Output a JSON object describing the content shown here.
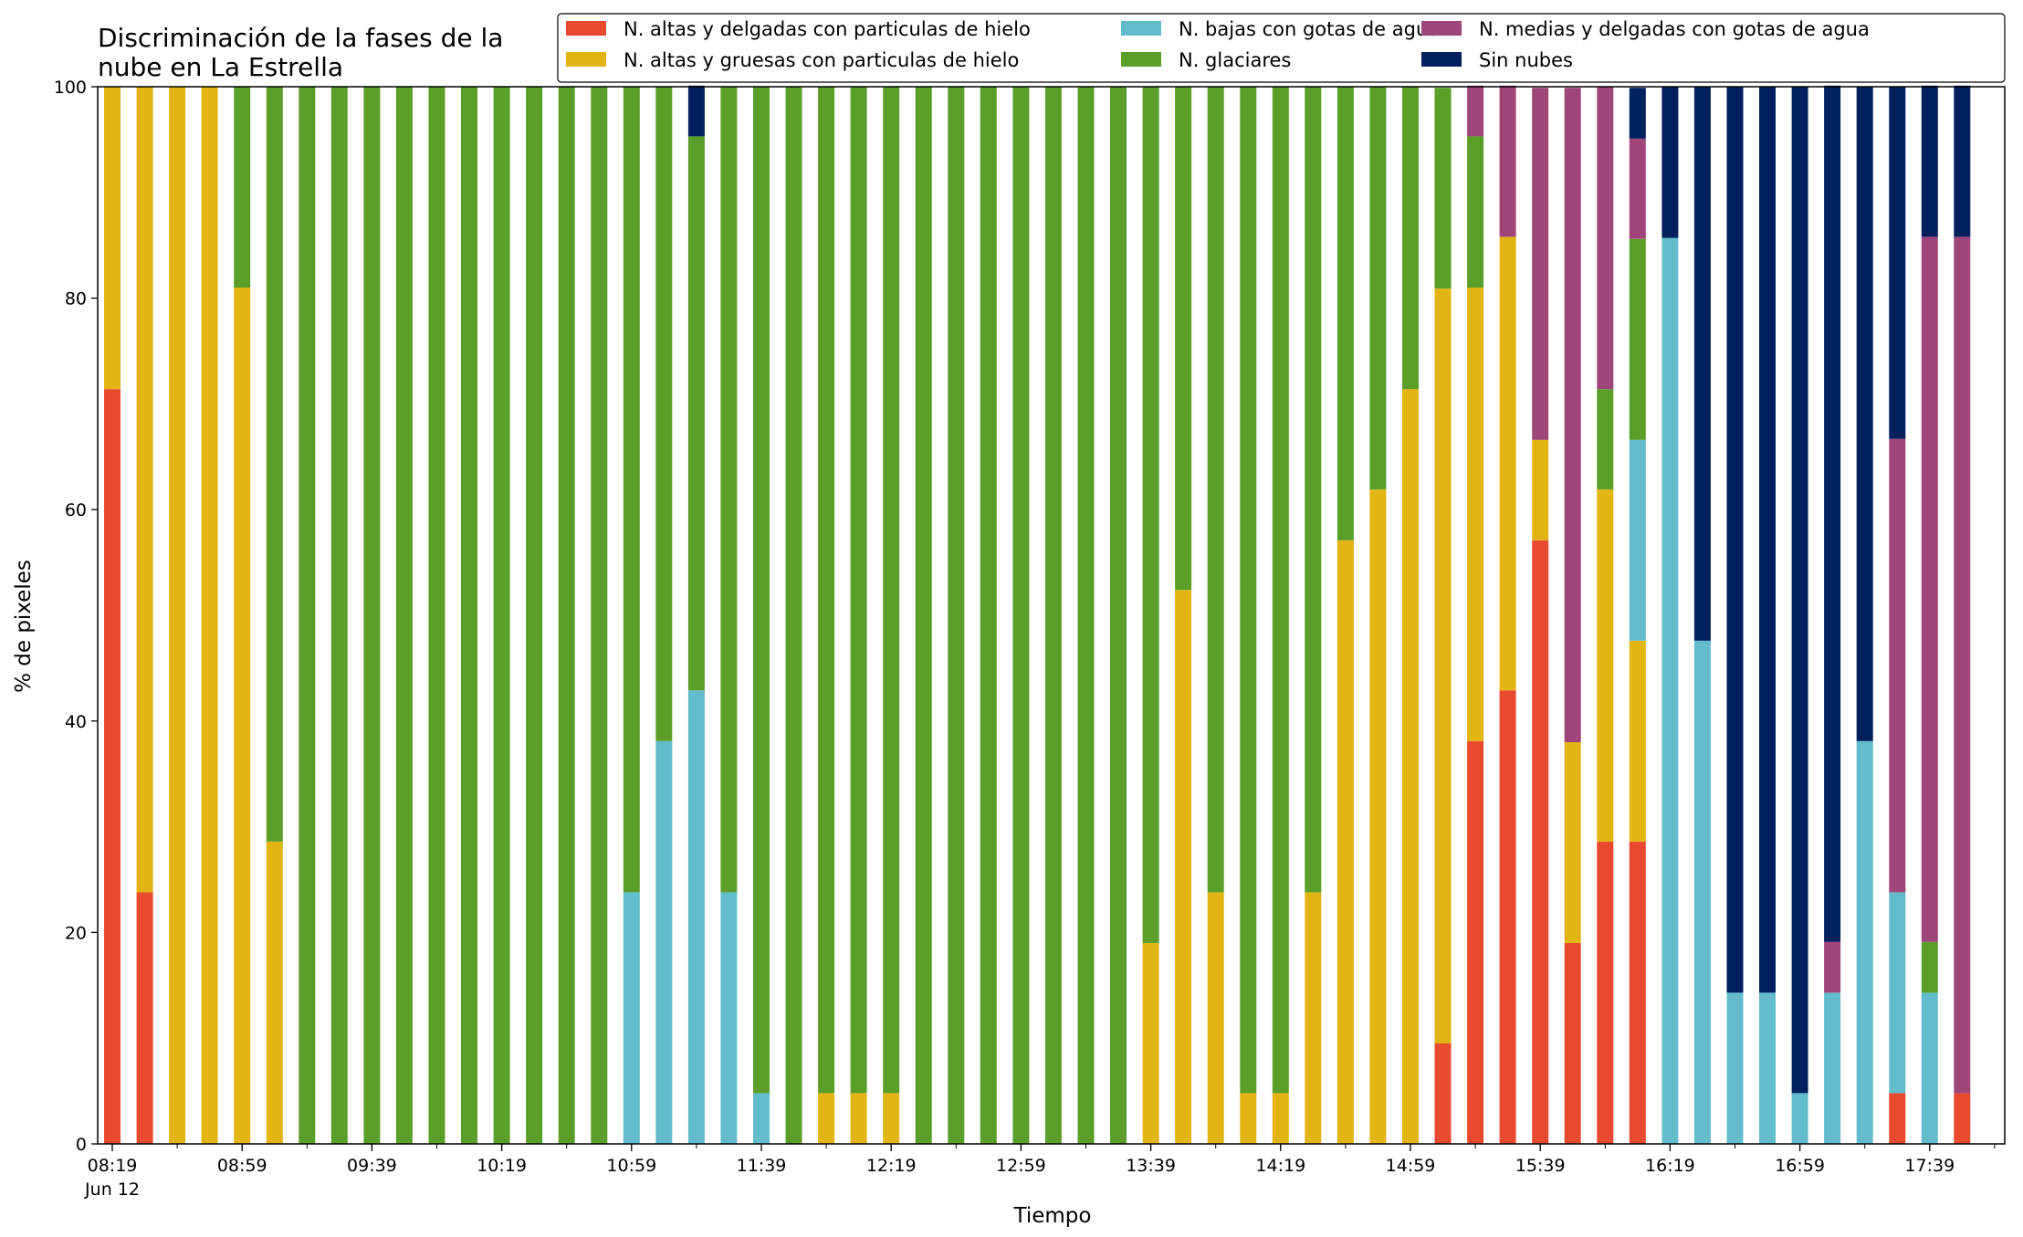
{
  "chart_data": {
    "type": "bar",
    "stacked": true,
    "title": "Discriminación de la fases de la nube en La Estrella",
    "title_lines": [
      "Discriminación de la fases de la",
      "nube en La Estrella"
    ],
    "xlabel": "Tiempo",
    "ylabel": "% de pixeles",
    "ylim": [
      0,
      100
    ],
    "yticks": [
      "0",
      "20",
      "40",
      "60",
      "80",
      "100"
    ],
    "xticks": [
      "08:19",
      "08:59",
      "09:39",
      "10:19",
      "10:59",
      "11:39",
      "12:19",
      "12:59",
      "13:39",
      "14:19",
      "14:59",
      "15:39",
      "16:19",
      "16:59",
      "17:39"
    ],
    "xtick_sublabel": "Jun 12",
    "grid": false,
    "legend_placement": "top-right",
    "categories": [
      "08:19",
      "08:29",
      "08:39",
      "08:49",
      "08:59",
      "09:09",
      "09:19",
      "09:29",
      "09:39",
      "09:49",
      "09:59",
      "10:09",
      "10:19",
      "10:29",
      "10:39",
      "10:49",
      "10:59",
      "11:09",
      "11:19",
      "11:29",
      "11:39",
      "11:49",
      "11:59",
      "12:09",
      "12:19",
      "12:29",
      "12:39",
      "12:49",
      "12:59",
      "13:09",
      "13:19",
      "13:29",
      "13:39",
      "13:49",
      "13:59",
      "14:09",
      "14:19",
      "14:29",
      "14:39",
      "14:49",
      "14:59",
      "15:09",
      "15:19",
      "15:29",
      "15:39",
      "15:49",
      "15:59",
      "16:09",
      "16:19",
      "16:29",
      "16:39",
      "16:49",
      "16:59",
      "17:09",
      "17:19",
      "17:29",
      "17:39",
      "17:49"
    ],
    "series": [
      {
        "name": "N. altas y delgadas con particulas de hielo",
        "color": "#E84A2F",
        "values": [
          71.4,
          23.8,
          0,
          0,
          0,
          0,
          0,
          0,
          0,
          0,
          0,
          0,
          0,
          0,
          0,
          0,
          0,
          0,
          0,
          0,
          0,
          0,
          0,
          0,
          0,
          0,
          0,
          0,
          0,
          0,
          0,
          0,
          0,
          0,
          0,
          0,
          0,
          0,
          0,
          0,
          0,
          9.5,
          38.1,
          42.9,
          57.1,
          19.0,
          28.6,
          28.6,
          0,
          0,
          0,
          0,
          0,
          0,
          0,
          4.8,
          0,
          4.8
        ]
      },
      {
        "name": "N. altas y gruesas con particulas de hielo",
        "color": "#E3B514",
        "values": [
          28.6,
          76.2,
          100,
          100,
          81.0,
          28.6,
          0,
          0,
          0,
          0,
          0,
          0,
          0,
          0,
          0,
          0,
          0,
          0,
          0,
          0,
          0,
          0,
          4.8,
          4.8,
          4.8,
          0,
          0,
          0,
          0,
          0,
          0,
          0,
          19.0,
          52.4,
          23.8,
          4.8,
          4.8,
          23.8,
          57.1,
          61.9,
          71.4,
          71.4,
          42.9,
          42.9,
          9.5,
          19.0,
          33.3,
          19.0,
          0,
          0,
          0,
          0,
          0,
          0,
          0,
          0,
          0,
          0
        ]
      },
      {
        "name": "N. bajas con gotas de agua",
        "color": "#63BCCB",
        "values": [
          0,
          0,
          0,
          0,
          0,
          0,
          0,
          0,
          0,
          0,
          0,
          0,
          0,
          0,
          0,
          0,
          23.8,
          38.1,
          42.9,
          23.8,
          4.8,
          0,
          0,
          0,
          0,
          0,
          0,
          0,
          0,
          0,
          0,
          0,
          0,
          0,
          0,
          0,
          0,
          0,
          0,
          0,
          0,
          0,
          0,
          0,
          0,
          0,
          0,
          19.0,
          85.7,
          47.6,
          14.3,
          14.3,
          4.8,
          14.3,
          38.1,
          19.0,
          14.3,
          0
        ]
      },
      {
        "name": "N. glaciares",
        "color": "#5B9F2A",
        "values": [
          0,
          0,
          0,
          0,
          19.0,
          71.4,
          100,
          100,
          100,
          100,
          100,
          100,
          100,
          100,
          100,
          100,
          76.2,
          61.9,
          52.4,
          76.2,
          95.2,
          100,
          95.2,
          95.2,
          95.2,
          100,
          100,
          100,
          100,
          100,
          100,
          100,
          81.0,
          47.6,
          76.2,
          95.2,
          95.2,
          76.2,
          42.9,
          38.1,
          28.6,
          19.0,
          14.3,
          0,
          0,
          0,
          9.5,
          19.0,
          0,
          0,
          0,
          0,
          0,
          0,
          0,
          0,
          4.8,
          0
        ]
      },
      {
        "name": "N. medias y delgadas con gotas de agua",
        "color": "#A0457A",
        "values": [
          0,
          0,
          0,
          0,
          0,
          0,
          0,
          0,
          0,
          0,
          0,
          0,
          0,
          0,
          0,
          0,
          0,
          0,
          0,
          0,
          0,
          0,
          0,
          0,
          0,
          0,
          0,
          0,
          0,
          0,
          0,
          0,
          0,
          0,
          0,
          0,
          0,
          0,
          0,
          0,
          0,
          0,
          4.8,
          14.3,
          33.3,
          61.9,
          28.6,
          9.5,
          0,
          0,
          0,
          0,
          0,
          4.8,
          0,
          42.9,
          66.7,
          81.0
        ]
      },
      {
        "name": "Sin nubes",
        "color": "#03205E",
        "values": [
          0,
          0,
          0,
          0,
          0,
          0,
          0,
          0,
          0,
          0,
          0,
          0,
          0,
          0,
          0,
          0,
          0,
          0,
          4.8,
          0,
          0,
          0,
          0,
          0,
          0,
          0,
          0,
          0,
          0,
          0,
          0,
          0,
          0,
          0,
          0,
          0,
          0,
          0,
          0,
          0,
          0,
          0,
          0,
          0,
          0,
          0,
          0,
          4.8,
          14.3,
          52.4,
          85.7,
          85.7,
          95.2,
          81.0,
          61.9,
          33.3,
          14.3,
          14.3
        ]
      }
    ]
  }
}
